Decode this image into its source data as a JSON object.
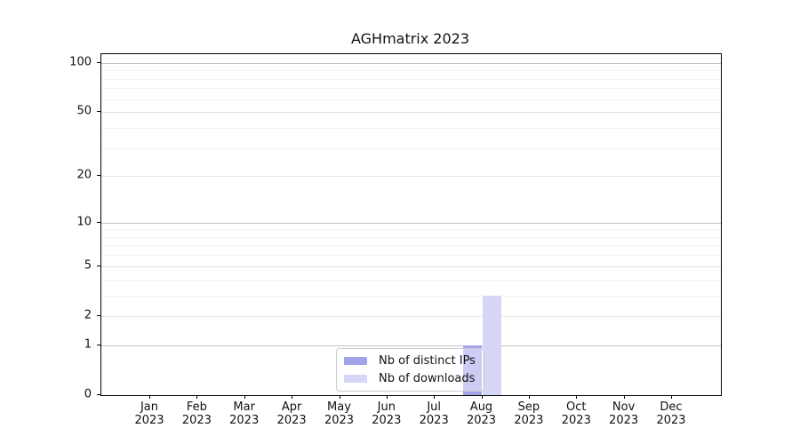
{
  "chart_data": {
    "type": "bar",
    "title": "AGHmatrix 2023",
    "x_categories": [
      "Jan",
      "Feb",
      "Mar",
      "Apr",
      "May",
      "Jun",
      "Jul",
      "Aug",
      "Sep",
      "Oct",
      "Nov",
      "Dec"
    ],
    "x_year": "2023",
    "series": [
      {
        "name": "Nb of distinct IPs",
        "color": "#a3a3ec",
        "values": [
          0,
          0,
          0,
          0,
          0,
          0,
          0,
          1,
          0,
          0,
          0,
          0
        ]
      },
      {
        "name": "Nb of downloads",
        "color": "#d6d6f7",
        "values": [
          0,
          0,
          0,
          0,
          0,
          0,
          0,
          3,
          0,
          0,
          0,
          0
        ]
      }
    ],
    "y_scale": "log1p",
    "y_ticks": [
      0,
      1,
      2,
      5,
      10,
      20,
      50,
      100
    ],
    "y_ticks_emphasized": [
      1,
      10,
      100
    ],
    "y_minor_ticks": [
      3,
      4,
      6,
      7,
      8,
      9,
      30,
      40,
      60,
      70,
      80,
      90
    ],
    "y_max": 113,
    "ylim": [
      0,
      113
    ],
    "grid": true,
    "legend_position": "lower center",
    "colors": {
      "grid_major_dark": "#c3c3c3",
      "grid_major_light": "#e2e2e2",
      "grid_minor": "#f2f2f2",
      "axis": "#000000",
      "text": "#111111"
    }
  }
}
